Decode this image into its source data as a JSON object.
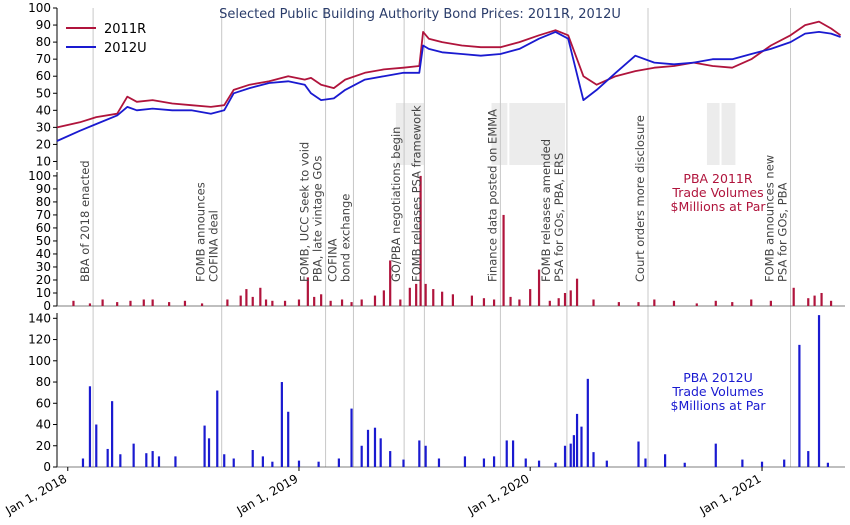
{
  "chart_data": {
    "type": "line",
    "title": "Selected Public Building Authority Bond Prices: 2011R, 2012U",
    "colors": {
      "series_2011R": "#b0143c",
      "series_2012U": "#1a1ad0",
      "shade": "#ececec",
      "event_line": "#c8c8c8"
    },
    "x_axis": {
      "ticks": [
        "Jan 1, 2018",
        "Jan 1, 2019",
        "Jan 1, 2020",
        "Jan 1, 2021"
      ],
      "range": [
        "2017-12-15",
        "2021-05-12"
      ]
    },
    "price_panel": {
      "ylim": [
        5,
        100
      ],
      "yticks": [
        10,
        20,
        30,
        40,
        50,
        60,
        70,
        80,
        90,
        100
      ],
      "legend_position": "top-left",
      "series": [
        {
          "name": "2011R",
          "color": "#b0143c",
          "points": [
            [
              "2017-12-15",
              30
            ],
            [
              "2018-01-20",
              33
            ],
            [
              "2018-02-15",
              36
            ],
            [
              "2018-03-20",
              38
            ],
            [
              "2018-04-05",
              48
            ],
            [
              "2018-04-20",
              45
            ],
            [
              "2018-05-15",
              46
            ],
            [
              "2018-06-15",
              44
            ],
            [
              "2018-07-15",
              43
            ],
            [
              "2018-08-15",
              42
            ],
            [
              "2018-09-05",
              43
            ],
            [
              "2018-09-20",
              52
            ],
            [
              "2018-10-15",
              55
            ],
            [
              "2018-11-15",
              57
            ],
            [
              "2018-12-15",
              60
            ],
            [
              "2019-01-10",
              58
            ],
            [
              "2019-01-20",
              59
            ],
            [
              "2019-02-05",
              55
            ],
            [
              "2019-02-25",
              53
            ],
            [
              "2019-03-15",
              58
            ],
            [
              "2019-04-15",
              62
            ],
            [
              "2019-05-15",
              64
            ],
            [
              "2019-06-15",
              65
            ],
            [
              "2019-07-10",
              66
            ],
            [
              "2019-07-16",
              86
            ],
            [
              "2019-07-25",
              82
            ],
            [
              "2019-08-15",
              80
            ],
            [
              "2019-09-15",
              78
            ],
            [
              "2019-10-15",
              77
            ],
            [
              "2019-11-15",
              77
            ],
            [
              "2019-12-15",
              80
            ],
            [
              "2020-01-15",
              84
            ],
            [
              "2020-02-10",
              87
            ],
            [
              "2020-03-01",
              84
            ],
            [
              "2020-03-25",
              60
            ],
            [
              "2020-04-15",
              55
            ],
            [
              "2020-05-15",
              60
            ],
            [
              "2020-06-15",
              63
            ],
            [
              "2020-07-15",
              65
            ],
            [
              "2020-08-15",
              66
            ],
            [
              "2020-09-15",
              68
            ],
            [
              "2020-10-15",
              66
            ],
            [
              "2020-11-15",
              65
            ],
            [
              "2020-12-15",
              70
            ],
            [
              "2021-01-15",
              78
            ],
            [
              "2021-02-15",
              84
            ],
            [
              "2021-03-10",
              90
            ],
            [
              "2021-04-01",
              92
            ],
            [
              "2021-04-20",
              88
            ],
            [
              "2021-05-05",
              84
            ]
          ]
        },
        {
          "name": "2012U",
          "color": "#1a1ad0",
          "points": [
            [
              "2017-12-15",
              22
            ],
            [
              "2018-01-20",
              28
            ],
            [
              "2018-02-15",
              32
            ],
            [
              "2018-03-20",
              37
            ],
            [
              "2018-04-05",
              42
            ],
            [
              "2018-04-20",
              40
            ],
            [
              "2018-05-15",
              41
            ],
            [
              "2018-06-15",
              40
            ],
            [
              "2018-07-15",
              40
            ],
            [
              "2018-08-15",
              38
            ],
            [
              "2018-09-05",
              40
            ],
            [
              "2018-09-20",
              50
            ],
            [
              "2018-10-15",
              53
            ],
            [
              "2018-11-15",
              56
            ],
            [
              "2018-12-15",
              57
            ],
            [
              "2019-01-10",
              55
            ],
            [
              "2019-01-20",
              50
            ],
            [
              "2019-02-05",
              46
            ],
            [
              "2019-02-25",
              47
            ],
            [
              "2019-03-15",
              52
            ],
            [
              "2019-04-15",
              58
            ],
            [
              "2019-05-15",
              60
            ],
            [
              "2019-06-15",
              62
            ],
            [
              "2019-07-10",
              62
            ],
            [
              "2019-07-16",
              78
            ],
            [
              "2019-07-25",
              76
            ],
            [
              "2019-08-15",
              74
            ],
            [
              "2019-09-15",
              73
            ],
            [
              "2019-10-15",
              72
            ],
            [
              "2019-11-15",
              73
            ],
            [
              "2019-12-15",
              76
            ],
            [
              "2020-01-15",
              82
            ],
            [
              "2020-02-10",
              86
            ],
            [
              "2020-03-01",
              82
            ],
            [
              "2020-03-25",
              46
            ],
            [
              "2020-04-15",
              52
            ],
            [
              "2020-05-15",
              62
            ],
            [
              "2020-06-15",
              72
            ],
            [
              "2020-07-15",
              68
            ],
            [
              "2020-08-15",
              67
            ],
            [
              "2020-09-15",
              68
            ],
            [
              "2020-10-15",
              70
            ],
            [
              "2020-11-15",
              70
            ],
            [
              "2020-12-15",
              73
            ],
            [
              "2021-01-15",
              76
            ],
            [
              "2021-02-15",
              80
            ],
            [
              "2021-03-10",
              85
            ],
            [
              "2021-04-01",
              86
            ],
            [
              "2021-04-20",
              85
            ],
            [
              "2021-05-05",
              83
            ]
          ]
        }
      ]
    },
    "volume_2011R_panel": {
      "label_lines": [
        "PBA 2011R",
        "Trade Volumes",
        "$Millions at Par"
      ],
      "ylim": [
        0,
        103
      ],
      "yticks": [
        0,
        10,
        20,
        30,
        40,
        50,
        60,
        70,
        80,
        90,
        100
      ],
      "color": "#b0143c",
      "bars": [
        [
          "2018-01-10",
          4
        ],
        [
          "2018-02-05",
          2
        ],
        [
          "2018-02-25",
          5
        ],
        [
          "2018-03-20",
          3
        ],
        [
          "2018-04-10",
          4
        ],
        [
          "2018-05-01",
          5
        ],
        [
          "2018-05-15",
          5
        ],
        [
          "2018-06-10",
          3
        ],
        [
          "2018-07-05",
          4
        ],
        [
          "2018-08-01",
          2
        ],
        [
          "2018-09-10",
          5
        ],
        [
          "2018-10-01",
          8
        ],
        [
          "2018-10-10",
          13
        ],
        [
          "2018-10-20",
          7
        ],
        [
          "2018-11-01",
          14
        ],
        [
          "2018-11-10",
          5
        ],
        [
          "2018-11-20",
          4
        ],
        [
          "2018-12-10",
          4
        ],
        [
          "2019-01-01",
          5
        ],
        [
          "2019-01-15",
          22
        ],
        [
          "2019-01-25",
          7
        ],
        [
          "2019-02-05",
          9
        ],
        [
          "2019-02-20",
          4
        ],
        [
          "2019-03-10",
          5
        ],
        [
          "2019-03-25",
          3
        ],
        [
          "2019-04-10",
          5
        ],
        [
          "2019-05-01",
          8
        ],
        [
          "2019-05-15",
          12
        ],
        [
          "2019-05-25",
          35
        ],
        [
          "2019-06-10",
          5
        ],
        [
          "2019-06-25",
          14
        ],
        [
          "2019-07-05",
          17
        ],
        [
          "2019-07-12",
          100
        ],
        [
          "2019-07-20",
          17
        ],
        [
          "2019-08-01",
          13
        ],
        [
          "2019-08-15",
          11
        ],
        [
          "2019-09-01",
          9
        ],
        [
          "2019-10-01",
          8
        ],
        [
          "2019-10-20",
          6
        ],
        [
          "2019-11-05",
          5
        ],
        [
          "2019-11-20",
          70
        ],
        [
          "2019-12-01",
          7
        ],
        [
          "2019-12-15",
          5
        ],
        [
          "2020-01-01",
          13
        ],
        [
          "2020-01-15",
          28
        ],
        [
          "2020-02-01",
          4
        ],
        [
          "2020-02-15",
          6
        ],
        [
          "2020-02-25",
          10
        ],
        [
          "2020-03-05",
          12
        ],
        [
          "2020-03-15",
          21
        ],
        [
          "2020-04-10",
          5
        ],
        [
          "2020-05-20",
          3
        ],
        [
          "2020-06-20",
          3
        ],
        [
          "2020-07-15",
          5
        ],
        [
          "2020-08-15",
          4
        ],
        [
          "2020-09-20",
          2
        ],
        [
          "2020-10-20",
          4
        ],
        [
          "2020-11-15",
          3
        ],
        [
          "2020-12-15",
          5
        ],
        [
          "2021-01-15",
          4
        ],
        [
          "2021-02-20",
          14
        ],
        [
          "2021-03-15",
          6
        ],
        [
          "2021-03-25",
          8
        ],
        [
          "2021-04-05",
          10
        ],
        [
          "2021-04-20",
          4
        ]
      ]
    },
    "volume_2012U_panel": {
      "label_lines": [
        "PBA 2012U",
        "Trade Volumes",
        "$Millions at Par"
      ],
      "ylim": [
        0,
        145
      ],
      "yticks": [
        0,
        20,
        40,
        60,
        80,
        100,
        120,
        140
      ],
      "color": "#1a1ad0",
      "bars": [
        [
          "2018-01-25",
          8
        ],
        [
          "2018-02-05",
          76
        ],
        [
          "2018-02-15",
          40
        ],
        [
          "2018-03-05",
          17
        ],
        [
          "2018-03-12",
          62
        ],
        [
          "2018-03-25",
          12
        ],
        [
          "2018-04-15",
          22
        ],
        [
          "2018-05-05",
          13
        ],
        [
          "2018-05-15",
          15
        ],
        [
          "2018-05-25",
          10
        ],
        [
          "2018-06-20",
          10
        ],
        [
          "2018-08-05",
          39
        ],
        [
          "2018-08-12",
          27
        ],
        [
          "2018-08-25",
          72
        ],
        [
          "2018-09-05",
          12
        ],
        [
          "2018-09-20",
          8
        ],
        [
          "2018-10-20",
          16
        ],
        [
          "2018-11-05",
          10
        ],
        [
          "2018-11-20",
          5
        ],
        [
          "2018-12-05",
          80
        ],
        [
          "2018-12-15",
          52
        ],
        [
          "2019-01-01",
          6
        ],
        [
          "2019-02-01",
          5
        ],
        [
          "2019-03-05",
          8
        ],
        [
          "2019-03-25",
          55
        ],
        [
          "2019-04-10",
          20
        ],
        [
          "2019-04-20",
          35
        ],
        [
          "2019-05-01",
          37
        ],
        [
          "2019-05-10",
          27
        ],
        [
          "2019-05-25",
          15
        ],
        [
          "2019-06-15",
          7
        ],
        [
          "2019-07-10",
          25
        ],
        [
          "2019-07-20",
          20
        ],
        [
          "2019-08-10",
          8
        ],
        [
          "2019-09-20",
          10
        ],
        [
          "2019-10-20",
          8
        ],
        [
          "2019-11-05",
          10
        ],
        [
          "2019-11-25",
          25
        ],
        [
          "2019-12-05",
          25
        ],
        [
          "2019-12-25",
          8
        ],
        [
          "2020-01-15",
          6
        ],
        [
          "2020-02-10",
          4
        ],
        [
          "2020-02-25",
          20
        ],
        [
          "2020-03-05",
          22
        ],
        [
          "2020-03-10",
          30
        ],
        [
          "2020-03-15",
          50
        ],
        [
          "2020-03-22",
          38
        ],
        [
          "2020-04-01",
          83
        ],
        [
          "2020-04-10",
          14
        ],
        [
          "2020-05-01",
          6
        ],
        [
          "2020-06-20",
          24
        ],
        [
          "2020-07-01",
          8
        ],
        [
          "2020-08-01",
          12
        ],
        [
          "2020-09-01",
          4
        ],
        [
          "2020-10-20",
          22
        ],
        [
          "2020-12-01",
          7
        ],
        [
          "2021-01-01",
          5
        ],
        [
          "2021-02-05",
          7
        ],
        [
          "2021-03-01",
          115
        ],
        [
          "2021-03-15",
          15
        ],
        [
          "2021-04-01",
          143
        ],
        [
          "2021-04-15",
          4
        ]
      ]
    },
    "events": [
      {
        "date": "2018-02-10",
        "label_lines": [
          "BBA of 2018 enacted"
        ]
      },
      {
        "date": "2018-09-01",
        "label_lines": [
          "FOMB announces",
          "COFINA deal"
        ]
      },
      {
        "date": "2019-02-12",
        "label_lines": [
          "FOMB, UCC Seek to void",
          "PBA, late vintage GOs"
        ]
      },
      {
        "date": "2019-03-28",
        "label_lines": [
          "COFINA",
          "bond exchange"
        ]
      },
      {
        "date": "2019-06-16",
        "label_lines": [
          "GO/PBA negotiations begin"
        ]
      },
      {
        "date": "2019-07-18",
        "label_lines": [
          "FOMB releases PSA framework"
        ]
      },
      {
        "date": "2019-11-15",
        "label_lines": [
          "Finance data posted on EMMA"
        ]
      },
      {
        "date": "2020-02-28",
        "label_lines": [
          "FOMB releases amended",
          "PSA for GOs, PBA, ERS"
        ]
      },
      {
        "date": "2020-07-05",
        "label_lines": [
          "Court orders more disclosure"
        ]
      },
      {
        "date": "2021-02-15",
        "label_lines": [
          "FOMB announces new",
          "PSA for GOs, PBA"
        ]
      }
    ],
    "shaded_periods": [
      [
        "2019-06-03",
        "2019-07-18"
      ],
      [
        "2019-11-01",
        "2019-11-26"
      ],
      [
        "2019-11-29",
        "2020-02-25"
      ],
      [
        "2020-10-06",
        "2020-10-26"
      ],
      [
        "2020-10-29",
        "2020-11-20"
      ]
    ]
  }
}
